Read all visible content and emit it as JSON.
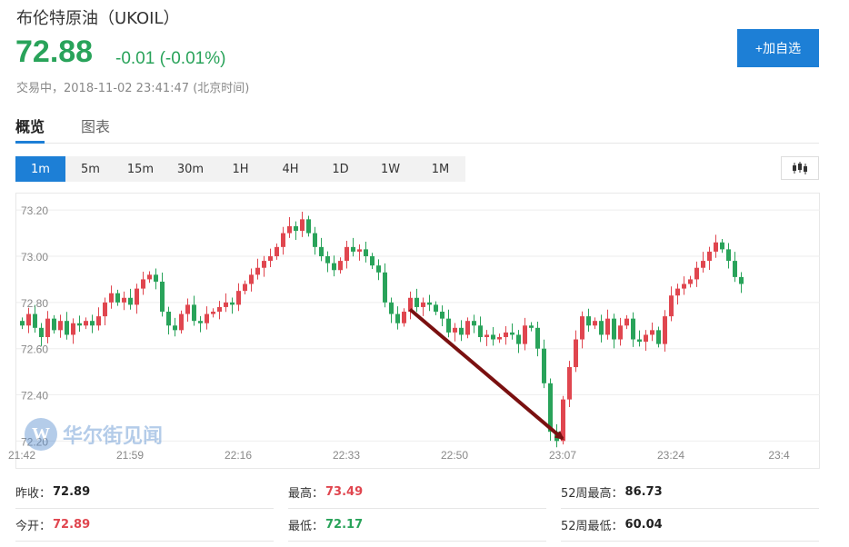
{
  "header": {
    "title": "布伦特原油（UKOIL）",
    "price": "72.88",
    "change": "-0.01 (-0.01%)",
    "status": "交易中，2018-11-02 23:41:47 (北京时间)",
    "add_button": "+加自选"
  },
  "tabs": [
    {
      "label": "概览",
      "active": true
    },
    {
      "label": "图表",
      "active": false
    }
  ],
  "periods": [
    {
      "label": "1m",
      "active": true
    },
    {
      "label": "5m",
      "active": false
    },
    {
      "label": "15m",
      "active": false
    },
    {
      "label": "30m",
      "active": false
    },
    {
      "label": "1H",
      "active": false
    },
    {
      "label": "4H",
      "active": false
    },
    {
      "label": "1D",
      "active": false
    },
    {
      "label": "1W",
      "active": false
    },
    {
      "label": "1M",
      "active": false
    }
  ],
  "chart_type_icon": "candlestick-icon",
  "watermark": {
    "text": "华尔街见闻",
    "logo_letter": "W"
  },
  "colors": {
    "up": "#e0464f",
    "down": "#29a35a",
    "accent": "#1d7fd6",
    "arrow": "#7a1010"
  },
  "chart_data": {
    "type": "candlestick",
    "x_ticks": [
      "21:42",
      "21:59",
      "22:16",
      "22:33",
      "22:50",
      "23:07",
      "23:24",
      "23:4"
    ],
    "y_ticks": [
      "73.20",
      "73.00",
      "72.80",
      "72.60",
      "72.40",
      "72.20"
    ],
    "ylim": [
      72.17,
      73.24
    ],
    "grid": true,
    "closes": [
      72.7,
      72.75,
      72.69,
      72.65,
      72.73,
      72.68,
      72.72,
      72.66,
      72.71,
      72.7,
      72.72,
      72.7,
      72.74,
      72.8,
      72.84,
      72.8,
      72.82,
      72.79,
      72.86,
      72.9,
      72.92,
      72.89,
      72.76,
      72.7,
      72.68,
      72.75,
      72.79,
      72.72,
      72.71,
      72.75,
      72.76,
      72.78,
      72.8,
      72.79,
      72.85,
      72.88,
      72.92,
      72.95,
      72.98,
      73.0,
      73.04,
      73.1,
      73.13,
      73.11,
      73.16,
      73.1,
      73.04,
      73.0,
      72.97,
      72.94,
      72.98,
      73.04,
      73.02,
      73.03,
      73.0,
      72.96,
      72.93,
      72.8,
      72.75,
      72.71,
      72.76,
      72.82,
      72.78,
      72.8,
      72.79,
      72.76,
      72.73,
      72.67,
      72.69,
      72.66,
      72.72,
      72.7,
      72.65,
      72.66,
      72.64,
      72.65,
      72.67,
      72.66,
      72.62,
      72.7,
      72.69,
      72.6,
      72.45,
      72.24,
      72.2,
      72.38,
      72.52,
      72.64,
      72.74,
      72.7,
      72.72,
      72.66,
      72.73,
      72.64,
      72.7,
      72.73,
      72.64,
      72.63,
      72.66,
      72.68,
      72.62,
      72.74,
      72.83,
      72.86,
      72.88,
      72.9,
      72.95,
      72.98,
      73.02,
      73.06,
      73.03,
      72.98,
      72.91,
      72.88
    ]
  },
  "annotation_arrow": {
    "from": [
      "22:43",
      72.77
    ],
    "to": [
      "23:07",
      72.21
    ]
  },
  "stats": [
    {
      "label": "昨收：",
      "value": "72.89",
      "tone": "neutral"
    },
    {
      "label": "最高：",
      "value": "73.49",
      "tone": "up"
    },
    {
      "label": "52周最高：",
      "value": "86.73",
      "tone": "neutral"
    },
    {
      "label": "今开：",
      "value": "72.89",
      "tone": "up"
    },
    {
      "label": "最低：",
      "value": "72.17",
      "tone": "down"
    },
    {
      "label": "52周最低：",
      "value": "60.04",
      "tone": "neutral"
    }
  ]
}
